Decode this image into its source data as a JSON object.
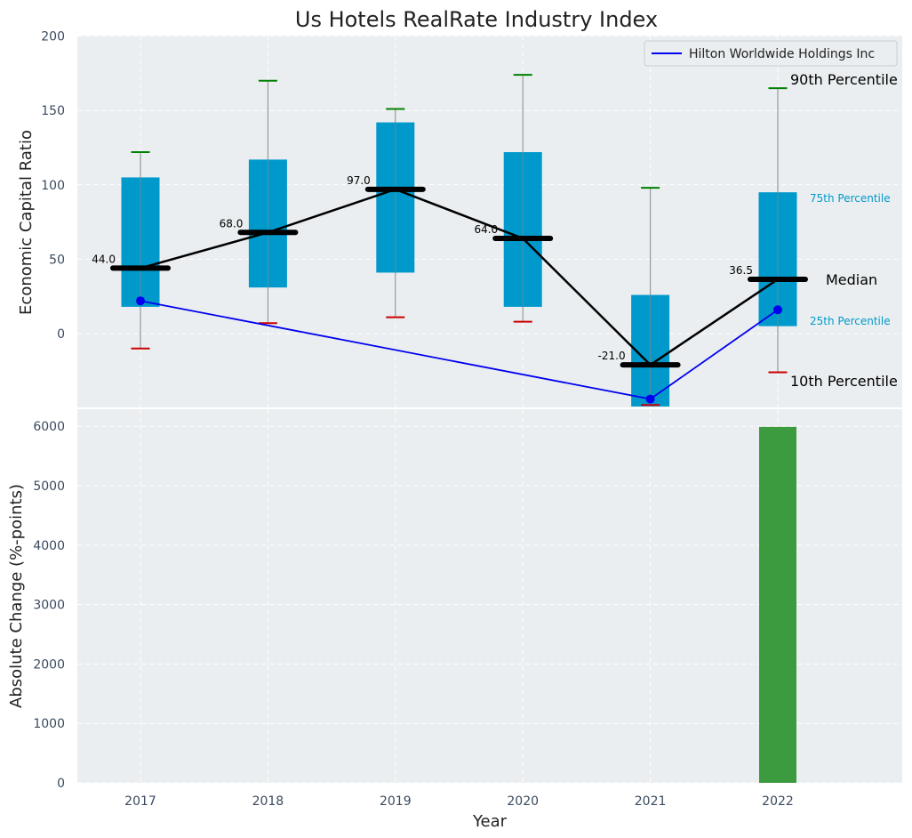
{
  "chart_data": [
    {
      "type": "box",
      "title": "Us Hotels RealRate Industry Index",
      "ylabel": "Economic Capital Ratio",
      "ylim": [
        -50,
        200
      ],
      "yticks": [
        0,
        50,
        100,
        150,
        200
      ],
      "categories": [
        "2017",
        "2018",
        "2019",
        "2020",
        "2021",
        "2022"
      ],
      "boxes": [
        {
          "year": "2017",
          "p10": -10,
          "p25": 18,
          "median": 44.0,
          "p75": 105,
          "p90": 122
        },
        {
          "year": "2018",
          "p10": 7,
          "p25": 31,
          "median": 68.0,
          "p75": 117,
          "p90": 170
        },
        {
          "year": "2019",
          "p10": 11,
          "p25": 41,
          "median": 97.0,
          "p75": 142,
          "p90": 151
        },
        {
          "year": "2020",
          "p10": 8,
          "p25": 18,
          "median": 64.0,
          "p75": 122,
          "p90": 174
        },
        {
          "year": "2021",
          "p10": -48,
          "p25": -49,
          "median": -21.0,
          "p75": 26,
          "p90": 98
        },
        {
          "year": "2022",
          "p10": -26,
          "p25": 5,
          "median": 36.5,
          "p75": 95,
          "p90": 165
        }
      ],
      "median_labels": [
        "44.0",
        "68.0",
        "97.0",
        "64.0",
        "-21.0",
        "36.5"
      ],
      "series": [
        {
          "name": "Hilton Worldwide Holdings Inc",
          "color": "#0000ee",
          "x": [
            "2017",
            "2021",
            "2022"
          ],
          "values": [
            22,
            -44,
            16
          ]
        }
      ],
      "annotations": {
        "p90": "90th Percentile",
        "p75": "75th Percentile",
        "median": "Median",
        "p25": "25th Percentile",
        "p10": "10th Percentile"
      },
      "colors": {
        "box": "#0099cc",
        "median": "#000000",
        "p90_cap": "#008000",
        "p10_cap": "#cc0000",
        "whisker": "#888888",
        "background": "#eaeef0"
      }
    },
    {
      "type": "bar",
      "xlabel": "Year",
      "ylabel": "Absolute Change (%-points)",
      "ylim": [
        0,
        6300
      ],
      "yticks": [
        0,
        1000,
        2000,
        3000,
        4000,
        5000,
        6000
      ],
      "categories": [
        "2017",
        "2018",
        "2019",
        "2020",
        "2021",
        "2022"
      ],
      "values": [
        0,
        0,
        0,
        0,
        0,
        5990
      ],
      "colors": {
        "bar": "#3c9b3f"
      }
    }
  ]
}
